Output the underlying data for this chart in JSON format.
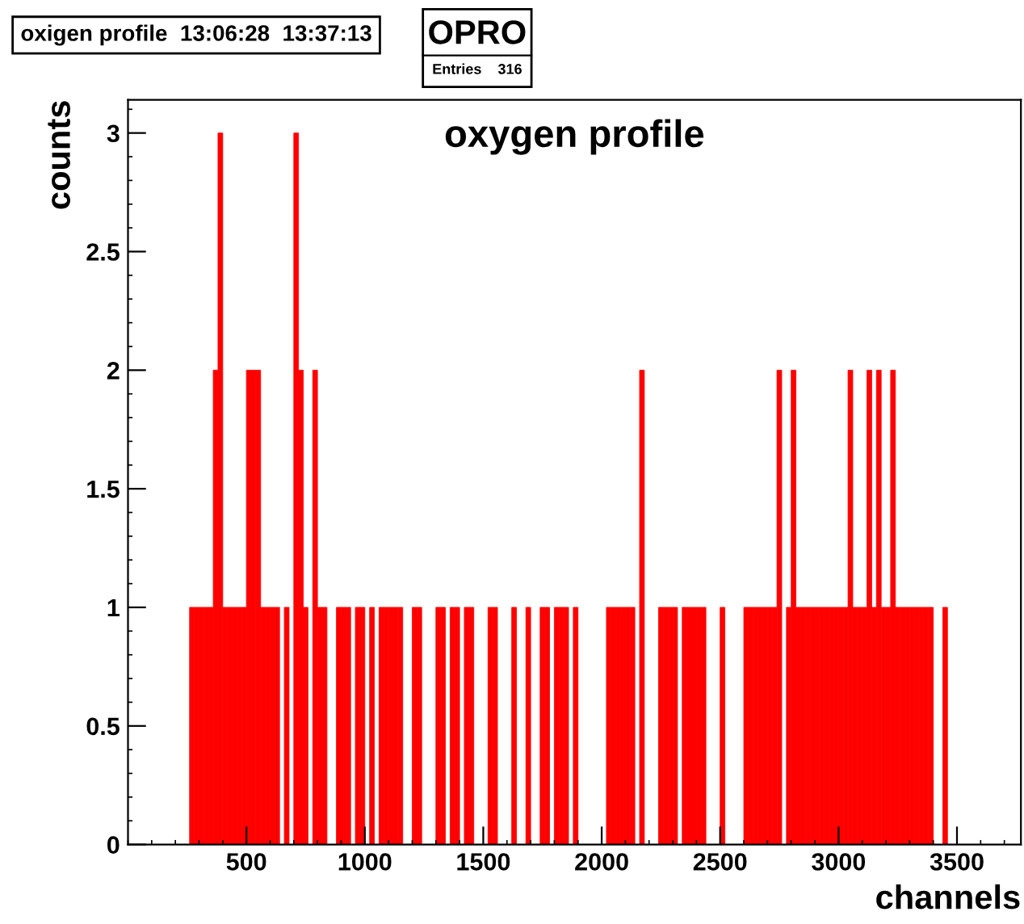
{
  "chart_data": {
    "type": "histogram",
    "title": "oxygen profile",
    "xlabel": "channels",
    "ylabel": "counts",
    "annotations": [
      "oxigen profile  13:06:28  13:37:13",
      "OPRO",
      "Entries    316"
    ],
    "bins": [
      0,
      20,
      40,
      60,
      80,
      100,
      120,
      140,
      160,
      180,
      200,
      220,
      240,
      260,
      280,
      300,
      320,
      340,
      360,
      380,
      400,
      420,
      440,
      460,
      480,
      500,
      520,
      540,
      560,
      580,
      600,
      620,
      640,
      660,
      680,
      700,
      720,
      740,
      760,
      780,
      800,
      820,
      840,
      860,
      880,
      900,
      920,
      940,
      960,
      980,
      1000,
      1020,
      1040,
      1060,
      1080,
      1100,
      1120,
      1140,
      1160,
      1180,
      1200,
      1220,
      1240,
      1260,
      1280,
      1300,
      1320,
      1340,
      1360,
      1380,
      1400,
      1420,
      1440,
      1460,
      1480,
      1500,
      1520,
      1540,
      1560,
      1580,
      1600,
      1620,
      1640,
      1660,
      1680,
      1700,
      1720,
      1740,
      1760,
      1780,
      1800,
      1820,
      1840,
      1860,
      1880,
      1900,
      1920,
      1940,
      1960,
      1980,
      2000,
      2020,
      2040,
      2060,
      2080,
      2100,
      2120,
      2140,
      2160,
      2180,
      2200,
      2220,
      2240,
      2260,
      2280,
      2300,
      2320,
      2340,
      2360,
      2380,
      2400,
      2420,
      2440,
      2460,
      2480,
      2500,
      2520,
      2540,
      2560,
      2580,
      2600,
      2620,
      2640,
      2660,
      2680,
      2700,
      2720,
      2740,
      2760,
      2780,
      2800,
      2820,
      2840,
      2860,
      2880,
      2900,
      2920,
      2940,
      2960,
      2980,
      3000,
      3020,
      3040,
      3060,
      3080,
      3100,
      3120,
      3140,
      3160,
      3180,
      3200,
      3220,
      3240,
      3260,
      3280,
      3300,
      3320,
      3340,
      3360,
      3380,
      3400,
      3420,
      3440,
      3460,
      3480,
      3500,
      3520,
      3540,
      3560,
      3580,
      3600,
      3620,
      3640,
      3660,
      3680,
      3700,
      3720,
      3740,
      3760
    ],
    "values": [
      0,
      0,
      0,
      0,
      0,
      0,
      0,
      0,
      0,
      0,
      0,
      0,
      0,
      1,
      1,
      1,
      1,
      1,
      2,
      3,
      1,
      1,
      1,
      1,
      1,
      2,
      2,
      2,
      1,
      1,
      1,
      1,
      0,
      1,
      0,
      3,
      2,
      1,
      0,
      2,
      1,
      1,
      0,
      0,
      1,
      1,
      1,
      0,
      1,
      1,
      0,
      1,
      0,
      1,
      1,
      1,
      1,
      1,
      0,
      0,
      1,
      1,
      0,
      0,
      0,
      1,
      1,
      0,
      1,
      1,
      0,
      1,
      1,
      0,
      0,
      0,
      1,
      1,
      0,
      0,
      0,
      1,
      0,
      0,
      1,
      0,
      0,
      1,
      1,
      0,
      1,
      1,
      1,
      0,
      1,
      0,
      0,
      0,
      0,
      0,
      0,
      1,
      1,
      1,
      1,
      1,
      1,
      0,
      2,
      0,
      0,
      0,
      1,
      1,
      1,
      1,
      0,
      1,
      1,
      1,
      1,
      1,
      0,
      0,
      0,
      1,
      0,
      0,
      0,
      0,
      1,
      1,
      1,
      1,
      1,
      1,
      1,
      2,
      0,
      1,
      2,
      1,
      1,
      1,
      1,
      1,
      1,
      1,
      1,
      1,
      1,
      1,
      2,
      1,
      1,
      1,
      2,
      1,
      2,
      1,
      1,
      2,
      1,
      1,
      1,
      1,
      1,
      1,
      1,
      1,
      0,
      0,
      1,
      0,
      0,
      0,
      0,
      0,
      0,
      0,
      0,
      0,
      0,
      0,
      0,
      0,
      0,
      0
    ],
    "color": "#ff0000",
    "xlim": [
      0,
      3770
    ],
    "xticks": [
      500,
      1000,
      1500,
      2000,
      2500,
      3000,
      3500
    ],
    "ylim": [
      0,
      3.14
    ],
    "yticks": [
      0,
      0.5,
      1,
      1.5,
      2,
      2.5,
      3
    ],
    "grid": false,
    "legend": false
  }
}
